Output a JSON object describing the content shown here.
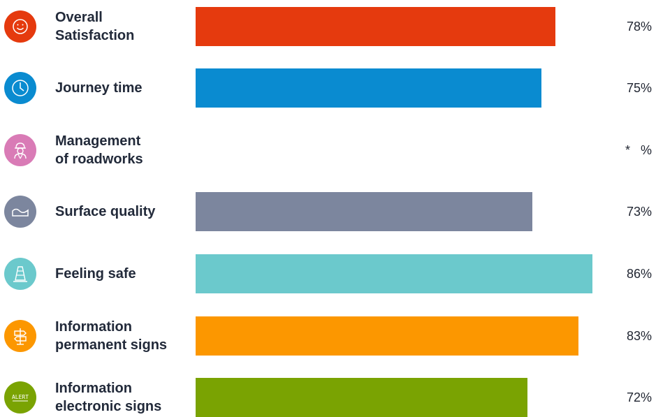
{
  "chart_data": {
    "type": "bar",
    "orientation": "horizontal",
    "categories": [
      "Overall Satisfaction",
      "Journey time",
      "Management of roadworks",
      "Surface quality",
      "Feeling safe",
      "Information permanent signs",
      "Information electronic signs"
    ],
    "values": [
      78,
      75,
      null,
      73,
      86,
      83,
      72
    ],
    "value_labels": [
      "78%",
      "75%",
      "*   %",
      "73%",
      "86%",
      "83%",
      "72%"
    ],
    "colors": [
      "#e53a0e",
      "#0a8bd0",
      "#d97bb6",
      "#7c869e",
      "#6bc9cc",
      "#fc9700",
      "#7aa302"
    ],
    "icons": [
      "smiley-face-icon",
      "clock-icon",
      "roadworker-icon",
      "road-surface-icon",
      "traffic-cone-icon",
      "signpost-icon",
      "alert-sign-icon"
    ],
    "icon_texts": [
      "",
      "",
      "",
      "",
      "",
      "",
      "ALERT"
    ],
    "xlim": [
      0,
      100
    ],
    "grid": false,
    "legend": "none"
  }
}
